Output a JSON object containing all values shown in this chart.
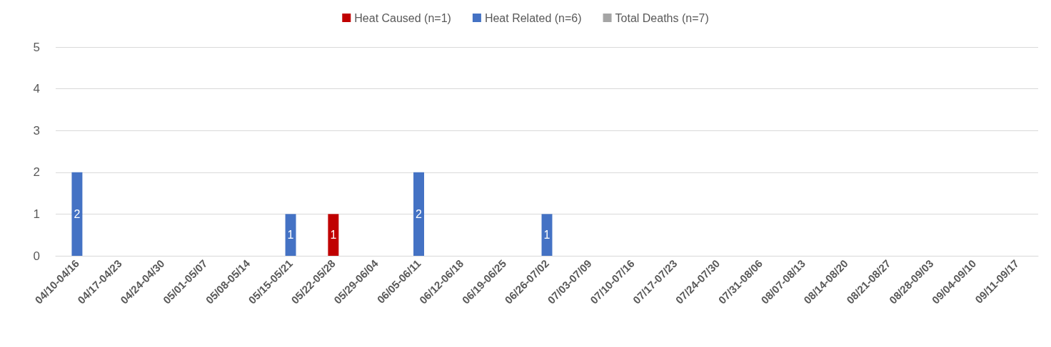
{
  "chart_data": {
    "type": "bar",
    "stacked": true,
    "categories": [
      "04/10-04/16",
      "04/17-04/23",
      "04/24-04/30",
      "05/01-05/07",
      "05/08-05/14",
      "05/15-05/21",
      "05/22-05/28",
      "05/29-06/04",
      "06/05-06/11",
      "06/12-06/18",
      "06/19-06/25",
      "06/26-07/02",
      "07/03-07/09",
      "07/10-07/16",
      "07/17-07/23",
      "07/24-07/30",
      "07/31-08/06",
      "08/07-08/13",
      "08/14-08/20",
      "08/21-08/27",
      "08/28-09/03",
      "09/04-09/10",
      "09/11-09/17"
    ],
    "series": [
      {
        "name": "Heat Caused (n=1)",
        "color": "#c00000",
        "values": [
          null,
          null,
          null,
          null,
          null,
          null,
          1,
          null,
          null,
          null,
          null,
          null,
          null,
          null,
          null,
          null,
          null,
          null,
          null,
          null,
          null,
          null,
          null
        ]
      },
      {
        "name": "Heat Related (n=6)",
        "color": "#4472c4",
        "values": [
          2,
          null,
          null,
          null,
          null,
          1,
          null,
          null,
          2,
          null,
          null,
          1,
          null,
          null,
          null,
          null,
          null,
          null,
          null,
          null,
          null,
          null,
          null
        ]
      },
      {
        "name": "Total Deaths (n=7)",
        "color": "#a5a5a5",
        "values": [
          null,
          null,
          null,
          null,
          null,
          null,
          null,
          null,
          null,
          null,
          null,
          null,
          null,
          null,
          null,
          null,
          null,
          null,
          null,
          null,
          null,
          null,
          null
        ]
      }
    ],
    "ylim": [
      0,
      5
    ],
    "yticks": [
      0,
      1,
      2,
      3,
      4,
      5
    ],
    "grid": "y",
    "legend": "top",
    "data_labels": true
  }
}
